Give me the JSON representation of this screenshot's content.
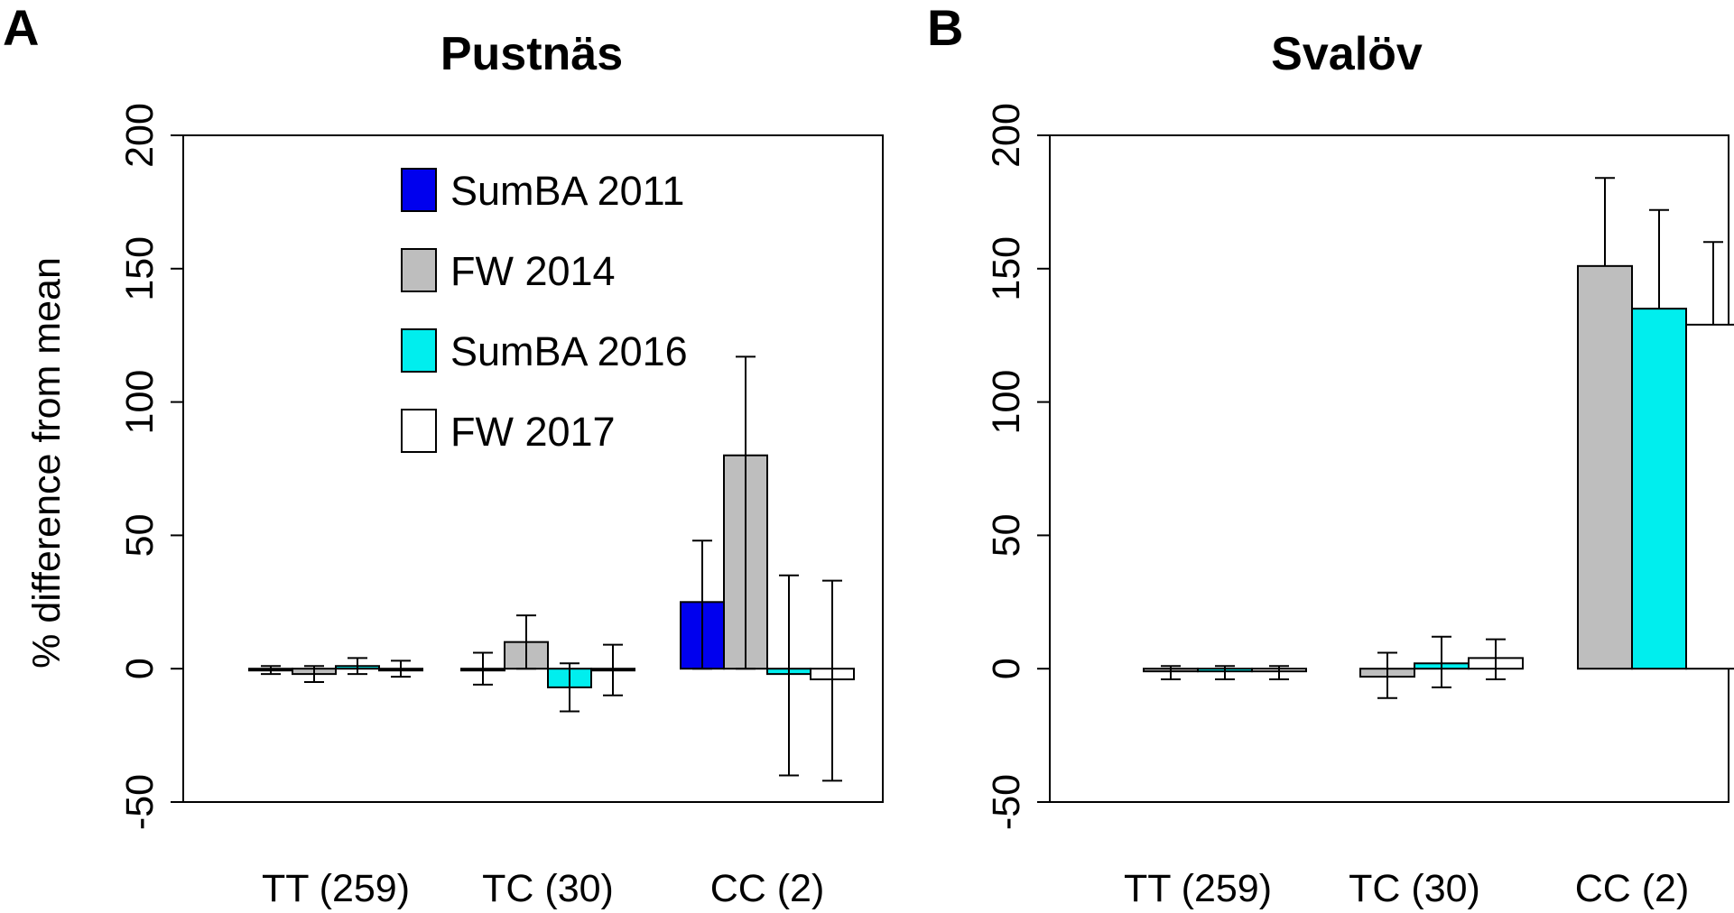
{
  "colors": {
    "SumBA 2011": "#0000ee",
    "FW 2014": "#bebebe",
    "SumBA 2016": "#00eeee",
    "FW 2017": "#ffffff"
  },
  "legend": [
    "SumBA 2011",
    "FW 2014",
    "SumBA 2016",
    "FW 2017"
  ],
  "chart_data": [
    {
      "type": "bar",
      "panel": "A",
      "title": "Pustnäs",
      "ylabel": "% difference from mean",
      "xlabel": "",
      "ylim": [
        -50,
        200
      ],
      "yticks": [
        "-50",
        "0",
        "50",
        "100",
        "150",
        "200"
      ],
      "categories": [
        "TT (259)",
        "TC (30)",
        "CC (2)"
      ],
      "legend_position": "top-center",
      "series": [
        {
          "name": "SumBA 2011",
          "values": [
            0,
            0,
            25
          ],
          "err_low": [
            -2,
            -6,
            0
          ],
          "err_high": [
            1,
            6,
            48
          ]
        },
        {
          "name": "FW 2014",
          "values": [
            -2,
            10,
            80
          ],
          "err_low": [
            -5,
            0,
            0
          ],
          "err_high": [
            1,
            20,
            117
          ]
        },
        {
          "name": "SumBA 2016",
          "values": [
            1,
            -7,
            -2
          ],
          "err_low": [
            -2,
            -16,
            -40
          ],
          "err_high": [
            4,
            2,
            35
          ]
        },
        {
          "name": "FW 2017",
          "values": [
            0,
            0,
            -4
          ],
          "err_low": [
            -3,
            -10,
            -42
          ],
          "err_high": [
            3,
            9,
            33
          ]
        }
      ]
    },
    {
      "type": "bar",
      "panel": "B",
      "title": "Svalöv",
      "ylabel": "",
      "xlabel": "",
      "ylim": [
        -50,
        200
      ],
      "yticks": [
        "-50",
        "0",
        "50",
        "100",
        "150",
        "200"
      ],
      "categories": [
        "TT (259)",
        "TC (30)",
        "CC (2)"
      ],
      "series": [
        {
          "name": "SumBA 2011",
          "values": [
            null,
            null,
            null
          ],
          "err_low": [
            null,
            null,
            null
          ],
          "err_high": [
            null,
            null,
            null
          ]
        },
        {
          "name": "FW 2014",
          "values": [
            -1,
            -3,
            151
          ],
          "err_low": [
            -4,
            -11,
            null
          ],
          "err_high": [
            1,
            6,
            184
          ]
        },
        {
          "name": "SumBA 2016",
          "values": [
            -1,
            2,
            135
          ],
          "err_low": [
            -4,
            -7,
            null
          ],
          "err_high": [
            1,
            12,
            172
          ]
        },
        {
          "name": "FW 2017",
          "values": [
            -1,
            4,
            129
          ],
          "err_low": [
            -4,
            -4,
            null
          ],
          "err_high": [
            1,
            11,
            160
          ]
        }
      ]
    }
  ]
}
